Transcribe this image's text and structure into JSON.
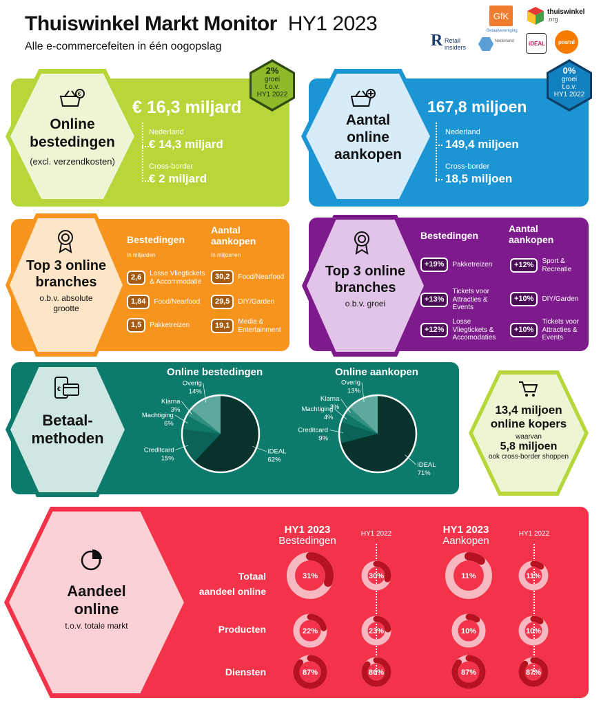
{
  "header": {
    "title": "Thuiswinkel Markt Monitor",
    "period": "HY1 2023",
    "subtitle": "Alle e-commercefeiten in één oogopslag",
    "logos": {
      "gfk": "GfK",
      "thuiswinkel": "thuiswinkel",
      "thuiswinkel_sub": ".org",
      "retail": "Retail",
      "retail_sub": "insiders",
      "betaal": "Betaalvereniging",
      "betaal_sub": "Nederland",
      "ideal": "iDEAL",
      "postnl": "postnl"
    }
  },
  "bestedingen": {
    "title_l1": "Online",
    "title_l2": "bestedingen",
    "note": "(excl. verzendkosten)",
    "growth_pct": "2%",
    "growth_l1": "groei",
    "growth_l2": "t.o.v.",
    "growth_l3": "HY1 2022",
    "total": "€ 16,3 miljard",
    "nl_label": "Nederland",
    "nl_value": "€ 14,3 miljard",
    "cb_label": "Cross-border",
    "cb_value": "€ 2 miljard"
  },
  "aankopen": {
    "title_l1": "Aantal",
    "title_l2": "online",
    "title_l3": "aankopen",
    "growth_pct": "0%",
    "growth_l1": "groei",
    "growth_l2": "t.o.v.",
    "growth_l3": "HY1 2022",
    "total": "167,8 miljoen",
    "nl_label": "Nederland",
    "nl_value": "149,4 miljoen",
    "cb_label": "Cross-border",
    "cb_value": "18,5 miljoen"
  },
  "top3_size": {
    "title_l1": "Top 3 online",
    "title_l2": "branches",
    "sub_l1": "o.b.v. absolute",
    "sub_l2": "grootte",
    "col1_title": "Bestedingen",
    "col1_unit": "In miljarden",
    "col2_title_l1": "Aantal",
    "col2_title_l2": "aankopen",
    "col2_unit": "In miljoenen",
    "col1": [
      {
        "v": "2,6",
        "l1": "Losse Vliegtickets",
        "l2": "& Accommodatie"
      },
      {
        "v": "1,84",
        "l1": "Food/Nearfood",
        "l2": ""
      },
      {
        "v": "1,5",
        "l1": "Pakketreizen",
        "l2": ""
      }
    ],
    "col2": [
      {
        "v": "30,2",
        "l1": "Food/Nearfood",
        "l2": ""
      },
      {
        "v": "29,5",
        "l1": "DIY/Garden",
        "l2": ""
      },
      {
        "v": "19,1",
        "l1": "Media &",
        "l2": "Entertainment"
      }
    ]
  },
  "top3_growth": {
    "title_l1": "Top 3 online",
    "title_l2": "branches",
    "sub": "o.b.v. groei",
    "col1_title": "Bestedingen",
    "col2_title_l1": "Aantal",
    "col2_title_l2": "aankopen",
    "col1": [
      {
        "v": "+19%",
        "l1": "Pakketreizen",
        "l2": "",
        "l3": ""
      },
      {
        "v": "+13%",
        "l1": "Tickets voor",
        "l2": "Attracties &",
        "l3": "Events"
      },
      {
        "v": "+12%",
        "l1": "Losse",
        "l2": "Vliegtickets &",
        "l3": "Accomodaties"
      }
    ],
    "col2": [
      {
        "v": "+12%",
        "l1": "Sport &",
        "l2": "Recreatie",
        "l3": ""
      },
      {
        "v": "+10%",
        "l1": "DIY/Garden",
        "l2": "",
        "l3": ""
      },
      {
        "v": "+10%",
        "l1": "Tickets voor",
        "l2": "Attracties &",
        "l3": "Events"
      }
    ]
  },
  "betaal": {
    "title_l1": "Betaal-",
    "title_l2": "methoden",
    "pie1_title": "Online bestedingen",
    "pie2_title": "Online aankopen"
  },
  "chart_data": [
    {
      "type": "pie",
      "title": "Online bestedingen",
      "slices": [
        {
          "label": "iDEAL",
          "value": 62,
          "color": "#07332c"
        },
        {
          "label": "Creditcard",
          "value": 15,
          "color": "#0b6357"
        },
        {
          "label": "Machtiging",
          "value": 6,
          "color": "#0f7869"
        },
        {
          "label": "Klarna",
          "value": 3,
          "color": "#2f8e80"
        },
        {
          "label": "Overig",
          "value": 14,
          "color": "#5fa89e"
        }
      ]
    },
    {
      "type": "pie",
      "title": "Online aankopen",
      "slices": [
        {
          "label": "iDEAL",
          "value": 71,
          "color": "#07332c"
        },
        {
          "label": "Creditcard",
          "value": 9,
          "color": "#0b6357"
        },
        {
          "label": "Machtiging",
          "value": 4,
          "color": "#0f7869"
        },
        {
          "label": "Klarna",
          "value": 3,
          "color": "#2f8e80"
        },
        {
          "label": "Overig",
          "value": 13,
          "color": "#5fa89e"
        }
      ]
    }
  ],
  "kopers": {
    "l1": "13,4 miljoen",
    "l2": "online kopers",
    "l3": "waarvan",
    "l4": "5,8 miljoen",
    "l5": "ook cross-border shoppen"
  },
  "aandeel": {
    "title_l1": "Aandeel",
    "title_l2": "online",
    "sub": "t.o.v. totale markt",
    "col_headers": [
      {
        "l1": "HY1 2023",
        "l2": "Bestedingen"
      },
      {
        "l1": "HY1 2022",
        "l2": ""
      },
      {
        "l1": "HY1 2023",
        "l2": "Aankopen"
      },
      {
        "l1": "HY1 2022",
        "l2": ""
      }
    ],
    "rows": [
      {
        "label_l1": "Totaal",
        "label_l2": "aandeel online",
        "values": [
          31,
          30,
          11,
          11
        ],
        "labels": [
          "31%",
          "30%",
          "11%",
          "11%"
        ]
      },
      {
        "label_l1": "Producten",
        "label_l2": "",
        "values": [
          22,
          23,
          10,
          10
        ],
        "labels": [
          "22%",
          "23%",
          "10%",
          "10%"
        ]
      },
      {
        "label_l1": "Diensten",
        "label_l2": "",
        "values": [
          87,
          86,
          87,
          87
        ],
        "labels": [
          "87%",
          "86%",
          "87%",
          "87%"
        ]
      }
    ]
  }
}
